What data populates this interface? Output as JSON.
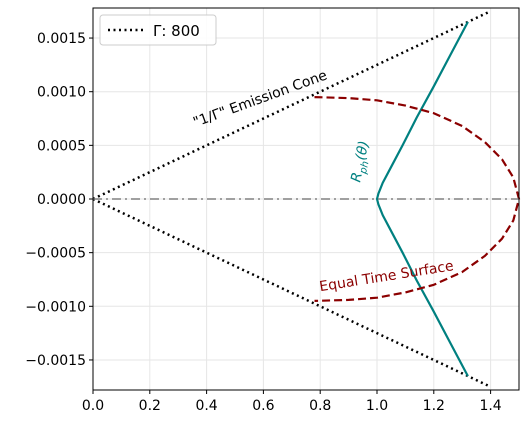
{
  "chart_data": {
    "type": "line",
    "xlim": [
      0.0,
      1.5
    ],
    "ylim": [
      -0.00178,
      0.00178
    ],
    "xticks": [
      0.0,
      0.2,
      0.4,
      0.6,
      0.8,
      1.0,
      1.2,
      1.4
    ],
    "xtick_labels": [
      "0.0",
      "0.2",
      "0.4",
      "0.6",
      "0.8",
      "1.0",
      "1.2",
      "1.4"
    ],
    "yticks": [
      -0.0015,
      -0.001,
      -0.0005,
      0.0,
      0.0005,
      0.001,
      0.0015
    ],
    "ytick_labels": [
      "−0.0015",
      "−0.0010",
      "−0.0005",
      "0.0000",
      "0.0005",
      "0.0010",
      "0.0015"
    ],
    "grid": true,
    "legend": {
      "position": "top-left",
      "entries": [
        "Γ: 800"
      ]
    },
    "series": [
      {
        "name": "Γ: 800",
        "style": "dotted",
        "color": "#000000",
        "segments": [
          [
            [
              0.0,
              0.0
            ],
            [
              1.4,
              0.00175
            ]
          ],
          [
            [
              0.0,
              0.0
            ],
            [
              1.4,
              -0.00175
            ]
          ]
        ]
      },
      {
        "style": "solid",
        "color": "#008080",
        "x": [
          1.32,
          1.26,
          1.2,
          1.14,
          1.09,
          1.05,
          1.02,
          1.005,
          1.0,
          1.005,
          1.02,
          1.05,
          1.09,
          1.14,
          1.2,
          1.26,
          1.32
        ],
        "y": [
          0.00165,
          0.00135,
          0.00105,
          0.00076,
          0.0005,
          0.0003,
          0.00015,
          5e-05,
          0.0,
          -5e-05,
          -0.00015,
          -0.0003,
          -0.0005,
          -0.00076,
          -0.00105,
          -0.00135,
          -0.00165
        ]
      },
      {
        "style": "dashed",
        "color": "#8b0000",
        "x": [
          0.78,
          0.9,
          1.0,
          1.1,
          1.2,
          1.3,
          1.38,
          1.44,
          1.48,
          1.5,
          1.48,
          1.44,
          1.38,
          1.3,
          1.2,
          1.1,
          1.0,
          0.9,
          0.78
        ],
        "y": [
          0.00095,
          0.00094,
          0.00092,
          0.00087,
          0.0008,
          0.00068,
          0.00053,
          0.00037,
          0.0002,
          0.0,
          -0.0002,
          -0.00037,
          -0.00053,
          -0.00068,
          -0.0008,
          -0.00087,
          -0.00092,
          -0.00094,
          -0.00095
        ]
      },
      {
        "style": "dashdot",
        "color": "#808080",
        "x": [
          0.0,
          1.5
        ],
        "y": [
          0.0,
          0.0
        ]
      }
    ],
    "annotations": [
      {
        "text": "\"1/Γ\" Emission Cone",
        "color": "#000000",
        "x": 0.36,
        "y": 0.00067,
        "angle": -20
      },
      {
        "text": "R_ph(θ)",
        "color": "#008080",
        "x": 0.94,
        "y": 0.00015,
        "angle": -78
      },
      {
        "text": "Equal Time Surface",
        "color": "#8b0000",
        "x": 0.8,
        "y": -0.00086,
        "angle": -9
      }
    ]
  }
}
